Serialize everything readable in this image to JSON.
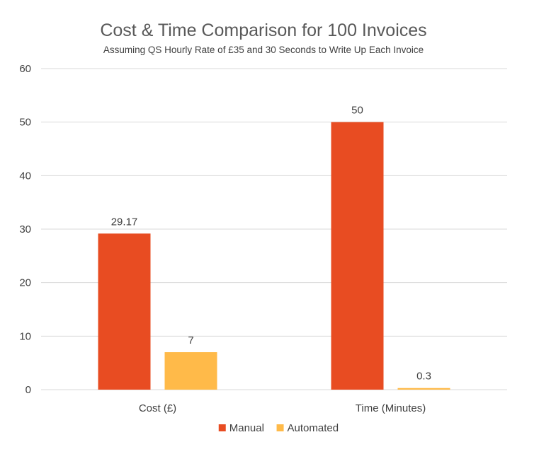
{
  "chart_data": {
    "type": "bar",
    "title": "Cost & Time Comparison for 100 Invoices",
    "subtitle": "Assuming QS Hourly Rate of £35 and 30 Seconds to Write Up Each Invoice",
    "categories": [
      "Cost (£)",
      "Time (Minutes)"
    ],
    "series": [
      {
        "name": "Manual",
        "values": [
          29.17,
          50
        ],
        "labels": [
          "29.17",
          "50"
        ],
        "color": "#E84C22"
      },
      {
        "name": "Automated",
        "values": [
          7,
          0.3
        ],
        "labels": [
          "7",
          "0.3"
        ],
        "color": "#FFBA49"
      }
    ],
    "ylim": [
      0,
      60
    ],
    "yticks": [
      "0",
      "10",
      "20",
      "30",
      "40",
      "50",
      "60"
    ],
    "grid": true,
    "legend": "bottom"
  }
}
